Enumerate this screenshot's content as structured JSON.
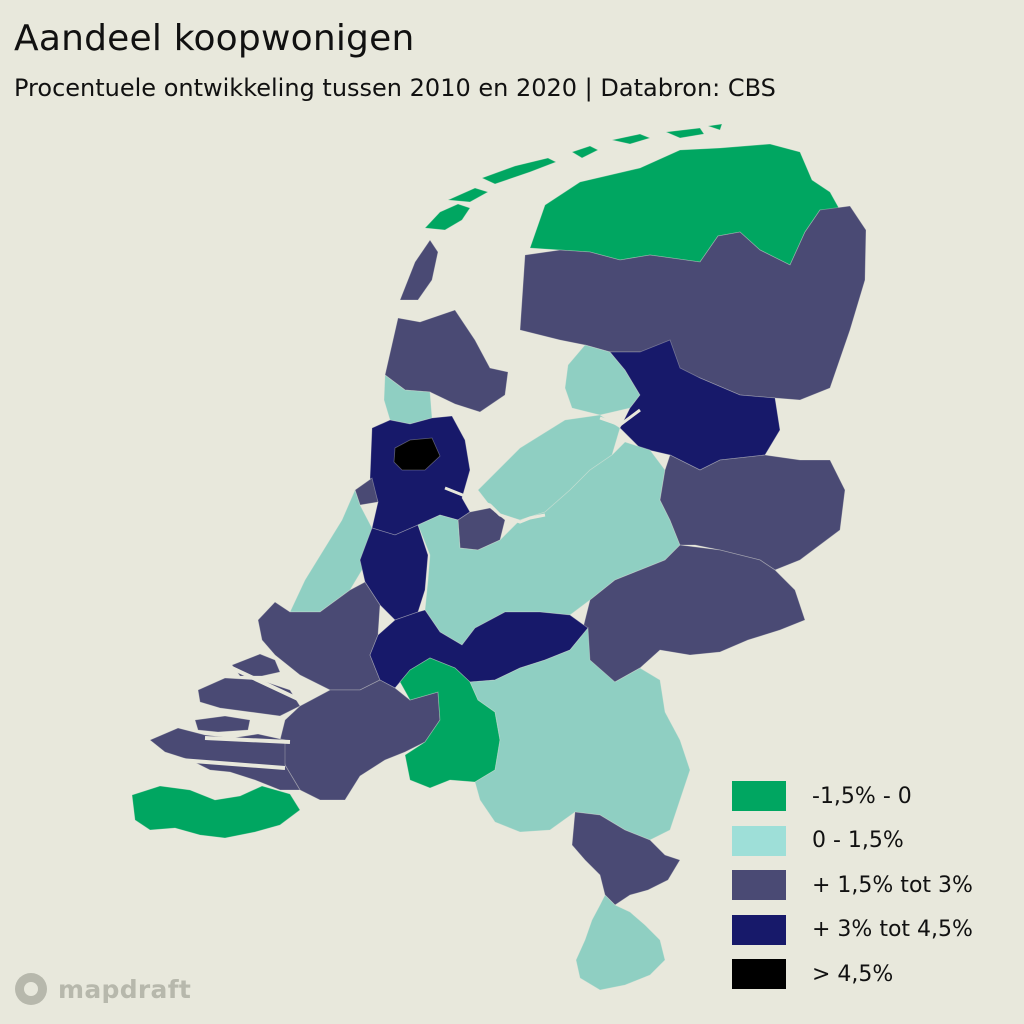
{
  "title": "Aandeel koopwonigen",
  "subtitle": "Procentuele ontwikkeling tussen 2010 en 2020 | Databron: CBS",
  "legend": [
    {
      "label": "-1,5% - 0",
      "color": "#00a661"
    },
    {
      "label": "0 - 1,5%",
      "color": "#9edfd8"
    },
    {
      "label": "+ 1,5% tot 3%",
      "color": "#4a4a74"
    },
    {
      "label": "+ 3% tot 4,5%",
      "color": "#17196a"
    },
    {
      "label": "> 4,5%",
      "color": "#000000"
    }
  ],
  "map_colors": {
    "neg": "#00a661",
    "low": "#8fcfc2",
    "mid": "#4a4a74",
    "high": "#17196a",
    "top": "#000000",
    "water": "#e8e8dc"
  },
  "brand": {
    "name": "mapdraft",
    "icon": "mapdraft-logo-icon"
  }
}
